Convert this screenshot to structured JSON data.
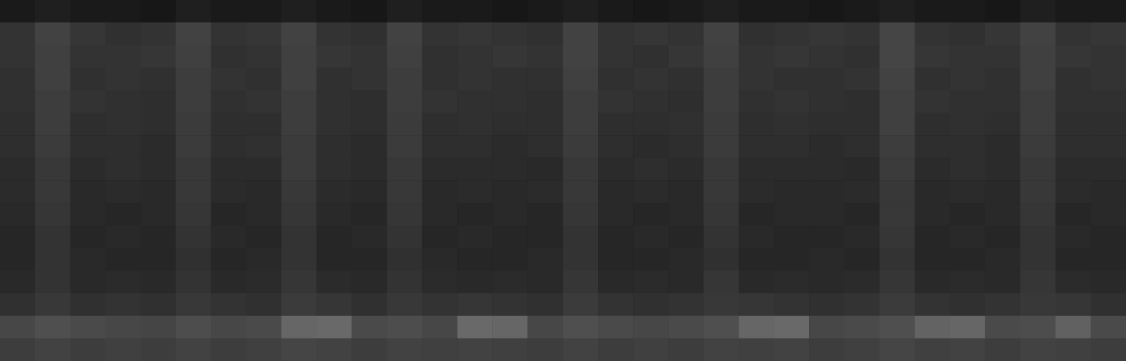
{
  "chart_data": {
    "type": "heatmap",
    "tick_labels": false,
    "grid": false,
    "zlim": [
      0,
      100
    ],
    "cells": [
      [
        10,
        12,
        10,
        10,
        9,
        12,
        10,
        10,
        12,
        10,
        9,
        12,
        10,
        10,
        9,
        10,
        12,
        10,
        9,
        10,
        12,
        10,
        10,
        9,
        10,
        12,
        10,
        10,
        9,
        12,
        10,
        10
      ],
      [
        20,
        26,
        21,
        19,
        20,
        26,
        20,
        21,
        26,
        20,
        19,
        26,
        20,
        21,
        20,
        19,
        26,
        20,
        21,
        20,
        26,
        19,
        20,
        21,
        20,
        27,
        20,
        19,
        21,
        26,
        20,
        21
      ],
      [
        20,
        25,
        20,
        20,
        21,
        25,
        19,
        20,
        25,
        21,
        20,
        25,
        19,
        20,
        21,
        20,
        26,
        20,
        19,
        21,
        25,
        20,
        21,
        20,
        19,
        27,
        21,
        20,
        20,
        25,
        21,
        20
      ],
      [
        19,
        25,
        19,
        20,
        19,
        24,
        20,
        19,
        25,
        19,
        20,
        24,
        19,
        20,
        19,
        19,
        25,
        19,
        20,
        19,
        24,
        20,
        19,
        19,
        20,
        26,
        19,
        20,
        19,
        25,
        19,
        20
      ],
      [
        19,
        24,
        20,
        19,
        18,
        24,
        19,
        20,
        24,
        19,
        18,
        24,
        20,
        19,
        19,
        18,
        24,
        20,
        19,
        18,
        24,
        19,
        20,
        19,
        18,
        25,
        20,
        19,
        19,
        24,
        19,
        19
      ],
      [
        18,
        24,
        18,
        19,
        18,
        23,
        18,
        18,
        24,
        19,
        18,
        23,
        18,
        19,
        18,
        18,
        24,
        18,
        18,
        19,
        23,
        18,
        19,
        18,
        18,
        25,
        18,
        19,
        18,
        24,
        18,
        18
      ],
      [
        18,
        23,
        18,
        18,
        17,
        23,
        18,
        19,
        23,
        18,
        17,
        23,
        18,
        18,
        17,
        18,
        23,
        18,
        17,
        18,
        23,
        18,
        18,
        17,
        18,
        24,
        18,
        18,
        17,
        23,
        18,
        18
      ],
      [
        17,
        22,
        17,
        18,
        17,
        22,
        17,
        17,
        23,
        18,
        17,
        22,
        17,
        17,
        17,
        16,
        22,
        17,
        18,
        17,
        22,
        17,
        17,
        17,
        16,
        23,
        17,
        18,
        17,
        22,
        17,
        17
      ],
      [
        17,
        22,
        16,
        17,
        16,
        22,
        17,
        16,
        22,
        17,
        16,
        22,
        16,
        17,
        16,
        17,
        22,
        16,
        17,
        16,
        22,
        17,
        16,
        16,
        17,
        22,
        16,
        17,
        16,
        22,
        17,
        16
      ],
      [
        16,
        21,
        16,
        15,
        16,
        21,
        15,
        16,
        21,
        16,
        15,
        21,
        16,
        15,
        16,
        15,
        21,
        16,
        15,
        16,
        21,
        15,
        16,
        16,
        15,
        22,
        16,
        15,
        16,
        21,
        15,
        16
      ],
      [
        15,
        20,
        15,
        16,
        15,
        20,
        16,
        15,
        20,
        15,
        16,
        20,
        15,
        16,
        15,
        15,
        20,
        15,
        16,
        15,
        20,
        16,
        15,
        15,
        16,
        21,
        15,
        16,
        15,
        20,
        16,
        15
      ],
      [
        15,
        20,
        16,
        15,
        15,
        19,
        15,
        16,
        20,
        15,
        15,
        19,
        16,
        15,
        15,
        16,
        20,
        15,
        15,
        16,
        19,
        15,
        15,
        16,
        15,
        20,
        15,
        15,
        16,
        20,
        15,
        15
      ],
      [
        16,
        20,
        16,
        17,
        16,
        20,
        16,
        17,
        21,
        17,
        16,
        20,
        17,
        16,
        17,
        16,
        21,
        16,
        17,
        16,
        21,
        16,
        17,
        16,
        17,
        21,
        16,
        17,
        16,
        21,
        17,
        16
      ],
      [
        19,
        22,
        19,
        20,
        19,
        22,
        20,
        19,
        23,
        21,
        19,
        22,
        20,
        21,
        20,
        19,
        23,
        20,
        19,
        20,
        22,
        21,
        20,
        19,
        20,
        23,
        20,
        19,
        20,
        22,
        21,
        19
      ],
      [
        28,
        31,
        29,
        28,
        27,
        30,
        28,
        29,
        40,
        41,
        29,
        30,
        28,
        41,
        40,
        28,
        31,
        29,
        28,
        29,
        31,
        40,
        41,
        28,
        29,
        31,
        39,
        40,
        29,
        30,
        38,
        29
      ],
      [
        24,
        26,
        24,
        25,
        24,
        26,
        24,
        25,
        27,
        26,
        24,
        26,
        25,
        26,
        25,
        24,
        26,
        24,
        25,
        24,
        26,
        25,
        26,
        24,
        25,
        27,
        25,
        26,
        24,
        26,
        25,
        24
      ]
    ]
  }
}
